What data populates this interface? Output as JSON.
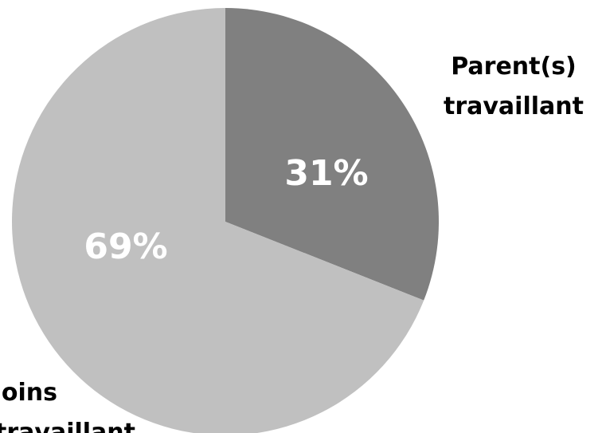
{
  "chart_data": {
    "type": "pie",
    "categories": [
      "Parent(s) travaillant",
      "Moins travaillant"
    ],
    "values": [
      31,
      69
    ],
    "value_labels": [
      "31%",
      "69%"
    ],
    "category_label_lines": [
      [
        "Parent(s)",
        "travaillant"
      ],
      [
        "Moins",
        "travaillant"
      ]
    ],
    "colors": [
      "#808080",
      "#c0c0c0"
    ],
    "start_angle_deg": 0,
    "direction": "clockwise",
    "legend": "none"
  }
}
